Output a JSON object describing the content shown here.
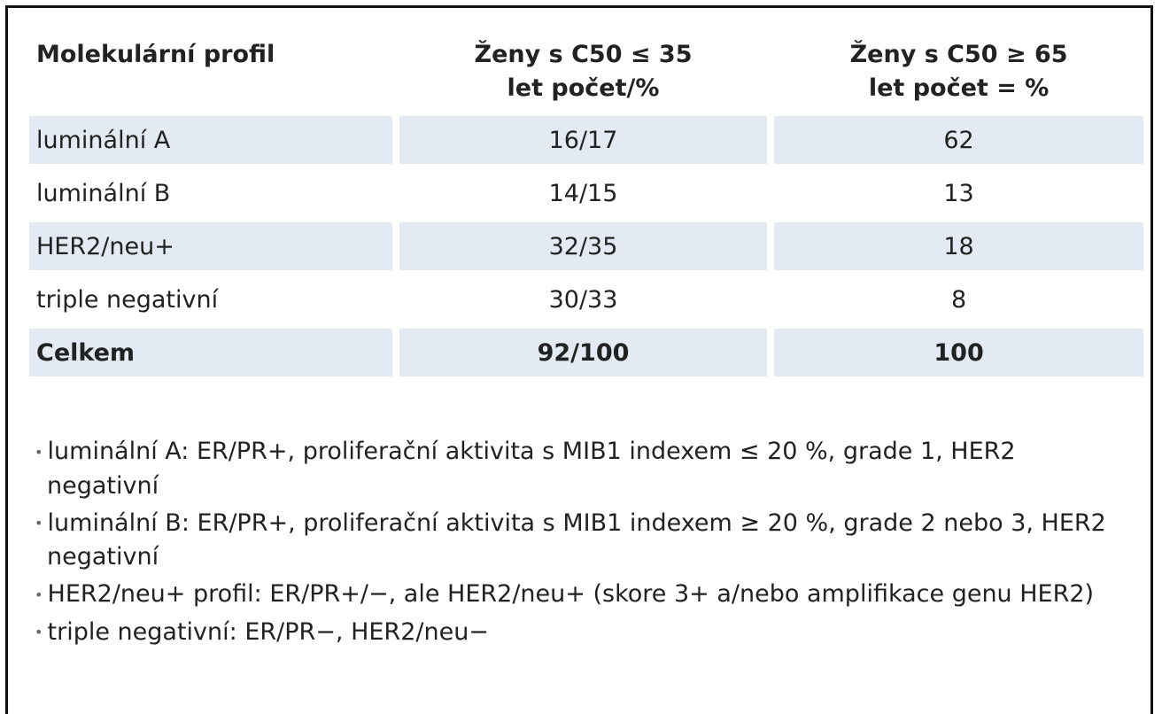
{
  "table": {
    "header": [
      "Molekulární profil",
      "Ženy s C50 ≤ 35 let počet/%",
      "Ženy s C50 ≥ 65 let počet = %"
    ],
    "rows": [
      [
        "luminální A",
        "16/17",
        "62"
      ],
      [
        "luminální B",
        "14/15",
        "13"
      ],
      [
        "HER2/neu+",
        "32/35",
        "18"
      ],
      [
        "triple negativní",
        "30/33",
        "8"
      ],
      [
        "Celkem",
        "92/100",
        "100"
      ]
    ]
  },
  "notes": [
    "luminální A: ER/PR+, proliferační aktivita s MIB1 indexem ≤ 20 %, grade 1, HER2 negativní",
    "luminální B: ER/PR+, proliferační aktivita s MIB1 indexem ≥ 20 %, grade 2 nebo 3, HER2 negativní",
    "HER2/neu+ profil: ER/PR+/−, ale HER2/neu+ (skore 3+ a/nebo amplifikace genu HER2)",
    "triple negativní: ER/PR−, HER2/neu−"
  ]
}
